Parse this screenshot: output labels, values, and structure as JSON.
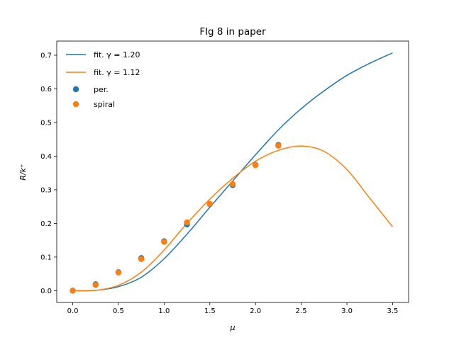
{
  "chart_data": {
    "type": "line",
    "title": "FIg 8 in paper",
    "xlabel": "μ",
    "ylabel": "R/k⁺",
    "xlim": [
      -0.175,
      3.675
    ],
    "ylim": [
      -0.035,
      0.742
    ],
    "xticks": [
      0.0,
      0.5,
      1.0,
      1.5,
      2.0,
      2.5,
      3.0,
      3.5
    ],
    "xtick_labels": [
      "0.0",
      "0.5",
      "1.0",
      "1.5",
      "2.0",
      "2.5",
      "3.0",
      "3.5"
    ],
    "yticks": [
      0.0,
      0.1,
      0.2,
      0.3,
      0.4,
      0.5,
      0.6,
      0.7
    ],
    "ytick_labels": [
      "0.0",
      "0.1",
      "0.2",
      "0.3",
      "0.4",
      "0.5",
      "0.6",
      "0.7"
    ],
    "grid": false,
    "legend_position": "top-left",
    "series": [
      {
        "name": "fit. γ = 1.20",
        "kind": "line",
        "color": "#1f77b4",
        "x": [
          0.0,
          0.25,
          0.5,
          0.75,
          1.0,
          1.25,
          1.5,
          1.75,
          2.0,
          2.25,
          2.5,
          2.75,
          3.0,
          3.25,
          3.5
        ],
        "y": [
          0.0,
          0.001,
          0.012,
          0.04,
          0.095,
          0.168,
          0.248,
          0.326,
          0.404,
          0.478,
          0.541,
          0.594,
          0.64,
          0.676,
          0.707
        ]
      },
      {
        "name": "fit. γ = 1.12",
        "kind": "line",
        "color": "#ff7f0e",
        "x": [
          0.0,
          0.25,
          0.5,
          0.75,
          1.0,
          1.25,
          1.5,
          1.75,
          2.0,
          2.25,
          2.5,
          2.75,
          3.0,
          3.25,
          3.5
        ],
        "y": [
          0.0,
          0.001,
          0.016,
          0.055,
          0.121,
          0.2,
          0.272,
          0.334,
          0.385,
          0.417,
          0.43,
          0.414,
          0.36,
          0.275,
          0.19
        ]
      },
      {
        "name": "per.",
        "kind": "scatter",
        "color": "#1f77b4",
        "x": [
          0.0,
          0.25,
          0.5,
          0.75,
          1.0,
          1.25,
          1.5,
          1.75,
          2.0,
          2.25
        ],
        "y": [
          0.0,
          0.019,
          0.055,
          0.097,
          0.147,
          0.197,
          0.257,
          0.314,
          0.374,
          0.433
        ]
      },
      {
        "name": "spiral",
        "kind": "scatter",
        "color": "#ff7f0e",
        "x": [
          0.0,
          0.25,
          0.5,
          0.75,
          1.0,
          1.25,
          1.5,
          1.75,
          2.0,
          2.25
        ],
        "y": [
          0.0,
          0.017,
          0.054,
          0.094,
          0.145,
          0.203,
          0.258,
          0.317,
          0.373,
          0.431
        ]
      }
    ]
  }
}
